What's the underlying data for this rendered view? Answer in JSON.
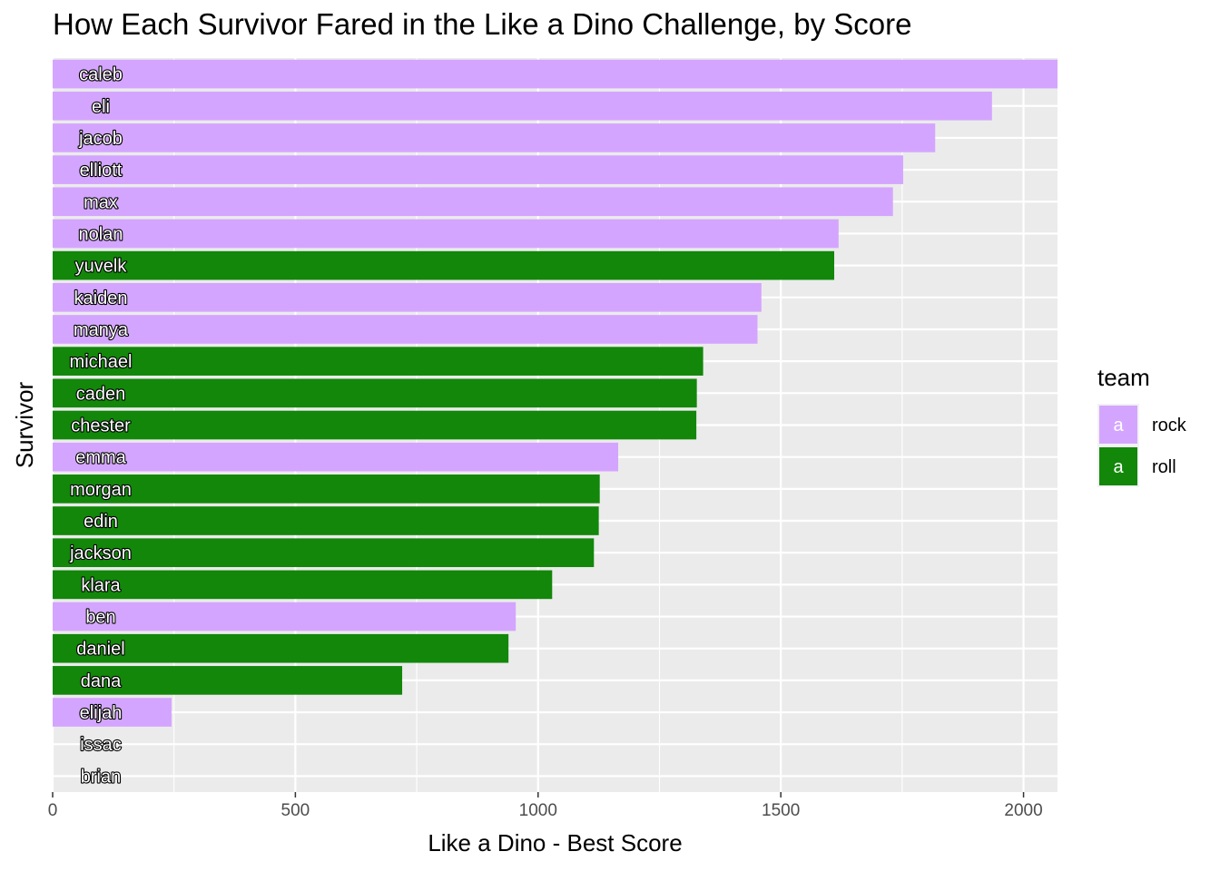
{
  "chart_data": {
    "type": "bar",
    "orientation": "horizontal",
    "title": "How Each Survivor Fared in the Like a Dino Challenge, by Score",
    "xlabel": "Like a Dino  - Best Score",
    "ylabel": "Survivor",
    "xlim": [
      0,
      2070
    ],
    "xticks": [
      0,
      500,
      1000,
      1500,
      2000
    ],
    "grid": true,
    "legend": {
      "title": "team",
      "position": "right",
      "key_letter": "a",
      "entries": [
        {
          "label": "rock",
          "color": "#D4A5FF"
        },
        {
          "label": "roll",
          "color": "#12870A"
        }
      ]
    },
    "categories": [
      "caleb",
      "eli",
      "jacob",
      "elliott",
      "max",
      "nolan",
      "yuvelk",
      "kaiden",
      "manya",
      "michael",
      "caden",
      "chester",
      "emma",
      "morgan",
      "edin",
      "jackson",
      "klara",
      "ben",
      "daniel",
      "dana",
      "elijah",
      "issac",
      "brian"
    ],
    "values": [
      2070,
      1935,
      1818,
      1752,
      1731,
      1619,
      1610,
      1460,
      1452,
      1340,
      1327,
      1326,
      1165,
      1127,
      1125,
      1115,
      1029,
      954,
      939,
      720,
      245,
      0,
      0
    ],
    "teams": [
      "rock",
      "rock",
      "rock",
      "rock",
      "rock",
      "rock",
      "roll",
      "rock",
      "rock",
      "roll",
      "roll",
      "roll",
      "rock",
      "roll",
      "roll",
      "roll",
      "roll",
      "rock",
      "roll",
      "roll",
      "rock",
      "rock",
      "rock"
    ]
  }
}
